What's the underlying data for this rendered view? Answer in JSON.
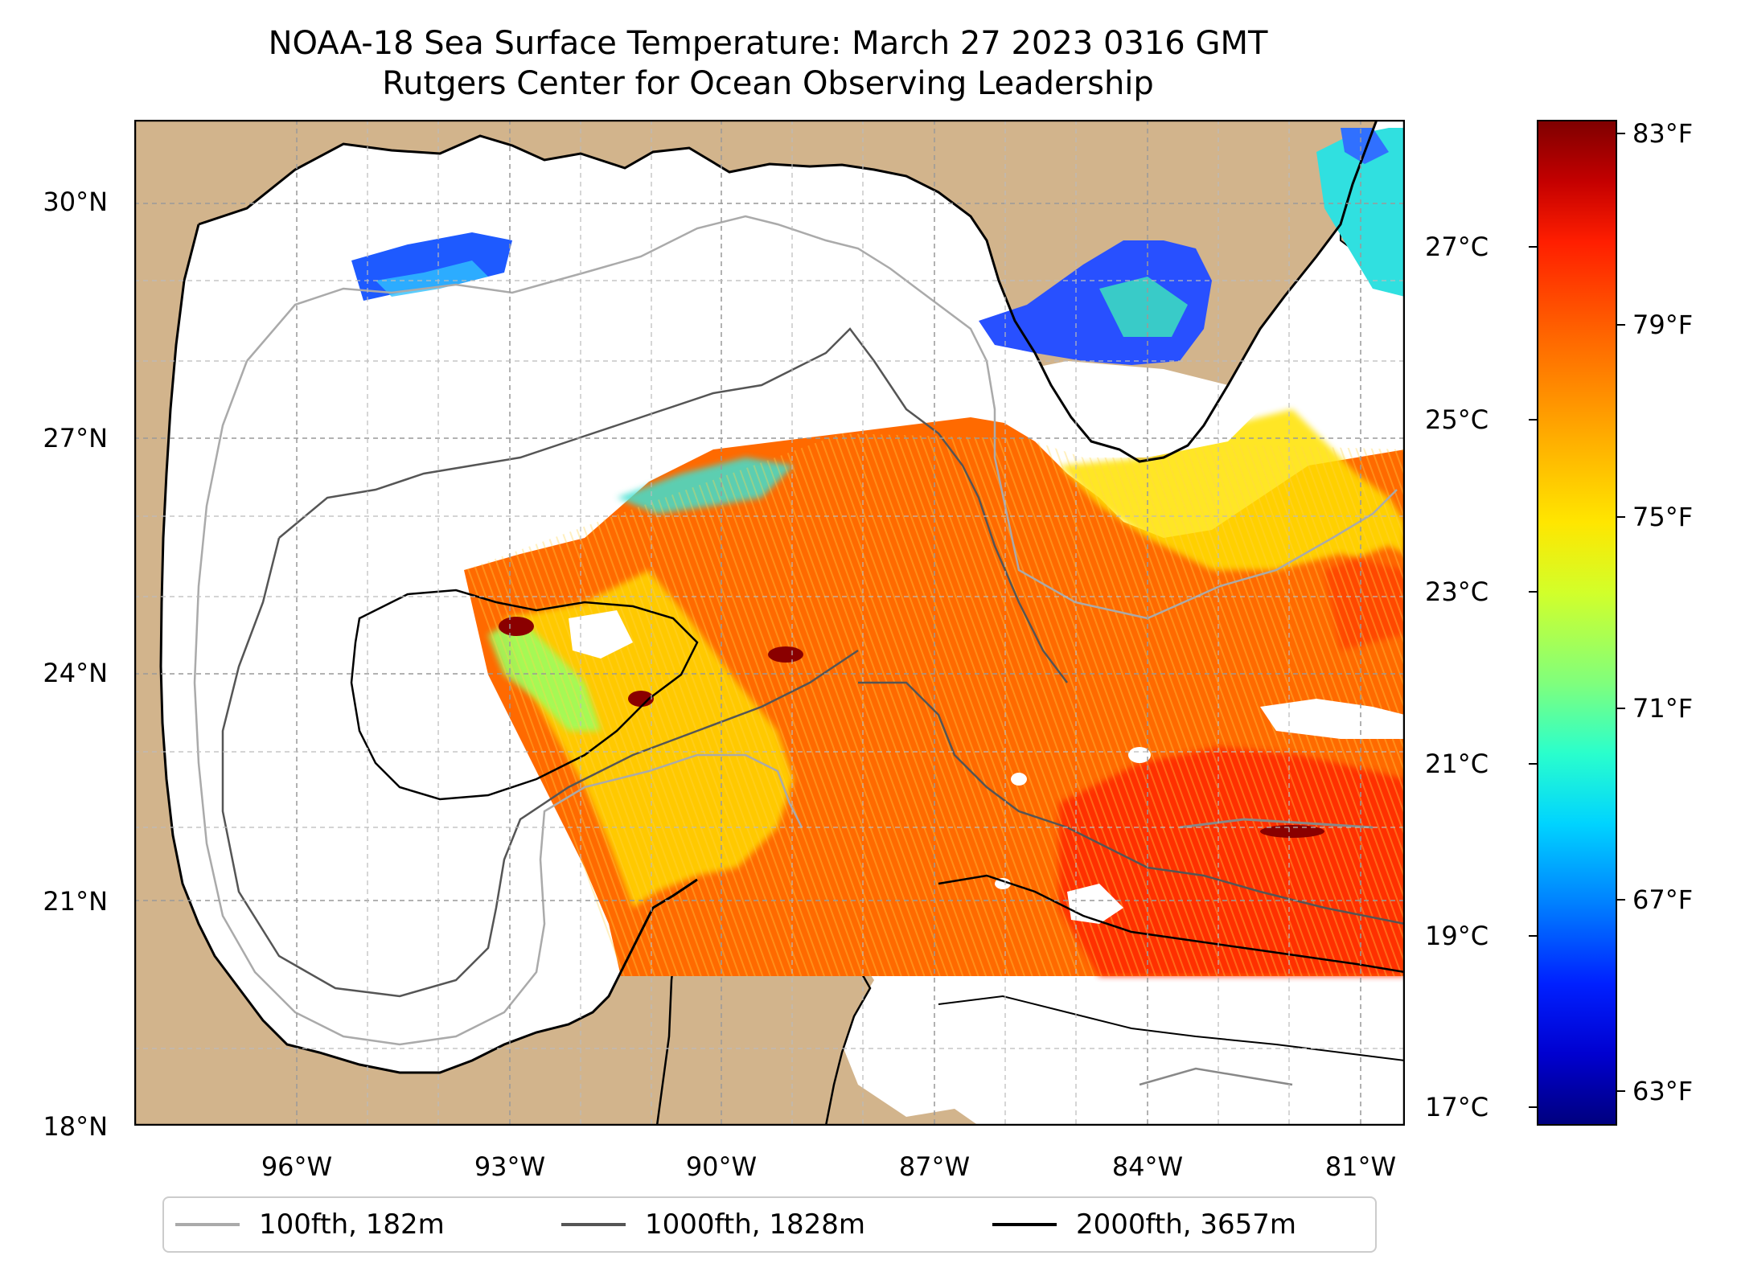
{
  "title": {
    "line1": "NOAA-18 Sea Surface Temperature: March 27 2023 0316 GMT",
    "line2": "Rutgers Center for Ocean Observing Leadership"
  },
  "axes": {
    "latitude_labels": [
      "30°N",
      "27°N",
      "24°N",
      "21°N",
      "18°N"
    ],
    "longitude_labels": [
      "96°W",
      "93°W",
      "90°W",
      "87°W",
      "84°W",
      "81°W"
    ]
  },
  "colorbar": {
    "celsius_labels": [
      "27°C",
      "25°C",
      "23°C",
      "21°C",
      "19°C",
      "17°C"
    ],
    "fahrenheit_labels": [
      "83°F",
      "79°F",
      "75°F",
      "71°F",
      "67°F",
      "63°F"
    ],
    "colormap": "jet"
  },
  "legend": {
    "items": [
      {
        "label": "100fth, 182m",
        "color": "#aaaaaa"
      },
      {
        "label": "1000fth, 1828m",
        "color": "#555555"
      },
      {
        "label": "2000fth, 3657m",
        "color": "#000000"
      }
    ]
  },
  "colors": {
    "land": "#d2b48c",
    "no_data": "#ffffff",
    "inland_water": "#9db5e0"
  }
}
